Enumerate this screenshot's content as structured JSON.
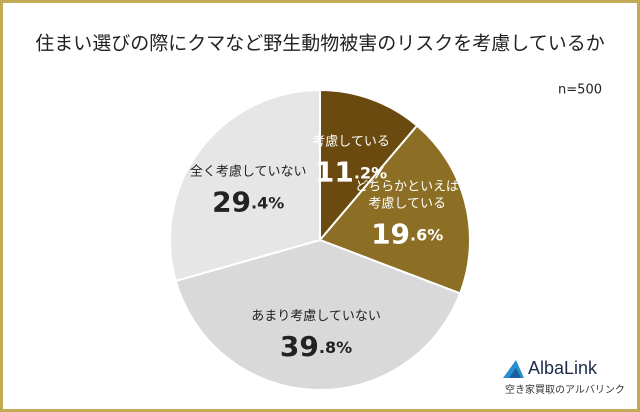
{
  "chart_data": {
    "type": "pie",
    "title": "住まい選びの際にクマなど野生動物被害のリスクを考慮しているか",
    "subtitle": "n=500",
    "categories": [
      "考慮している",
      "どちらかといえば\n考慮している",
      "あまり考慮していない",
      "全く考慮していない"
    ],
    "values": [
      11.2,
      19.6,
      39.8,
      29.4
    ],
    "value_labels": [
      "11.2%",
      "19.6%",
      "39.8%",
      "29.4%"
    ],
    "colors": [
      "#6b4a10",
      "#8d6e25",
      "#d9d9d9",
      "#e6e6e6"
    ]
  },
  "logo": {
    "name": "AlbaLink",
    "tagline": "空き家買取のアルバリンク"
  }
}
